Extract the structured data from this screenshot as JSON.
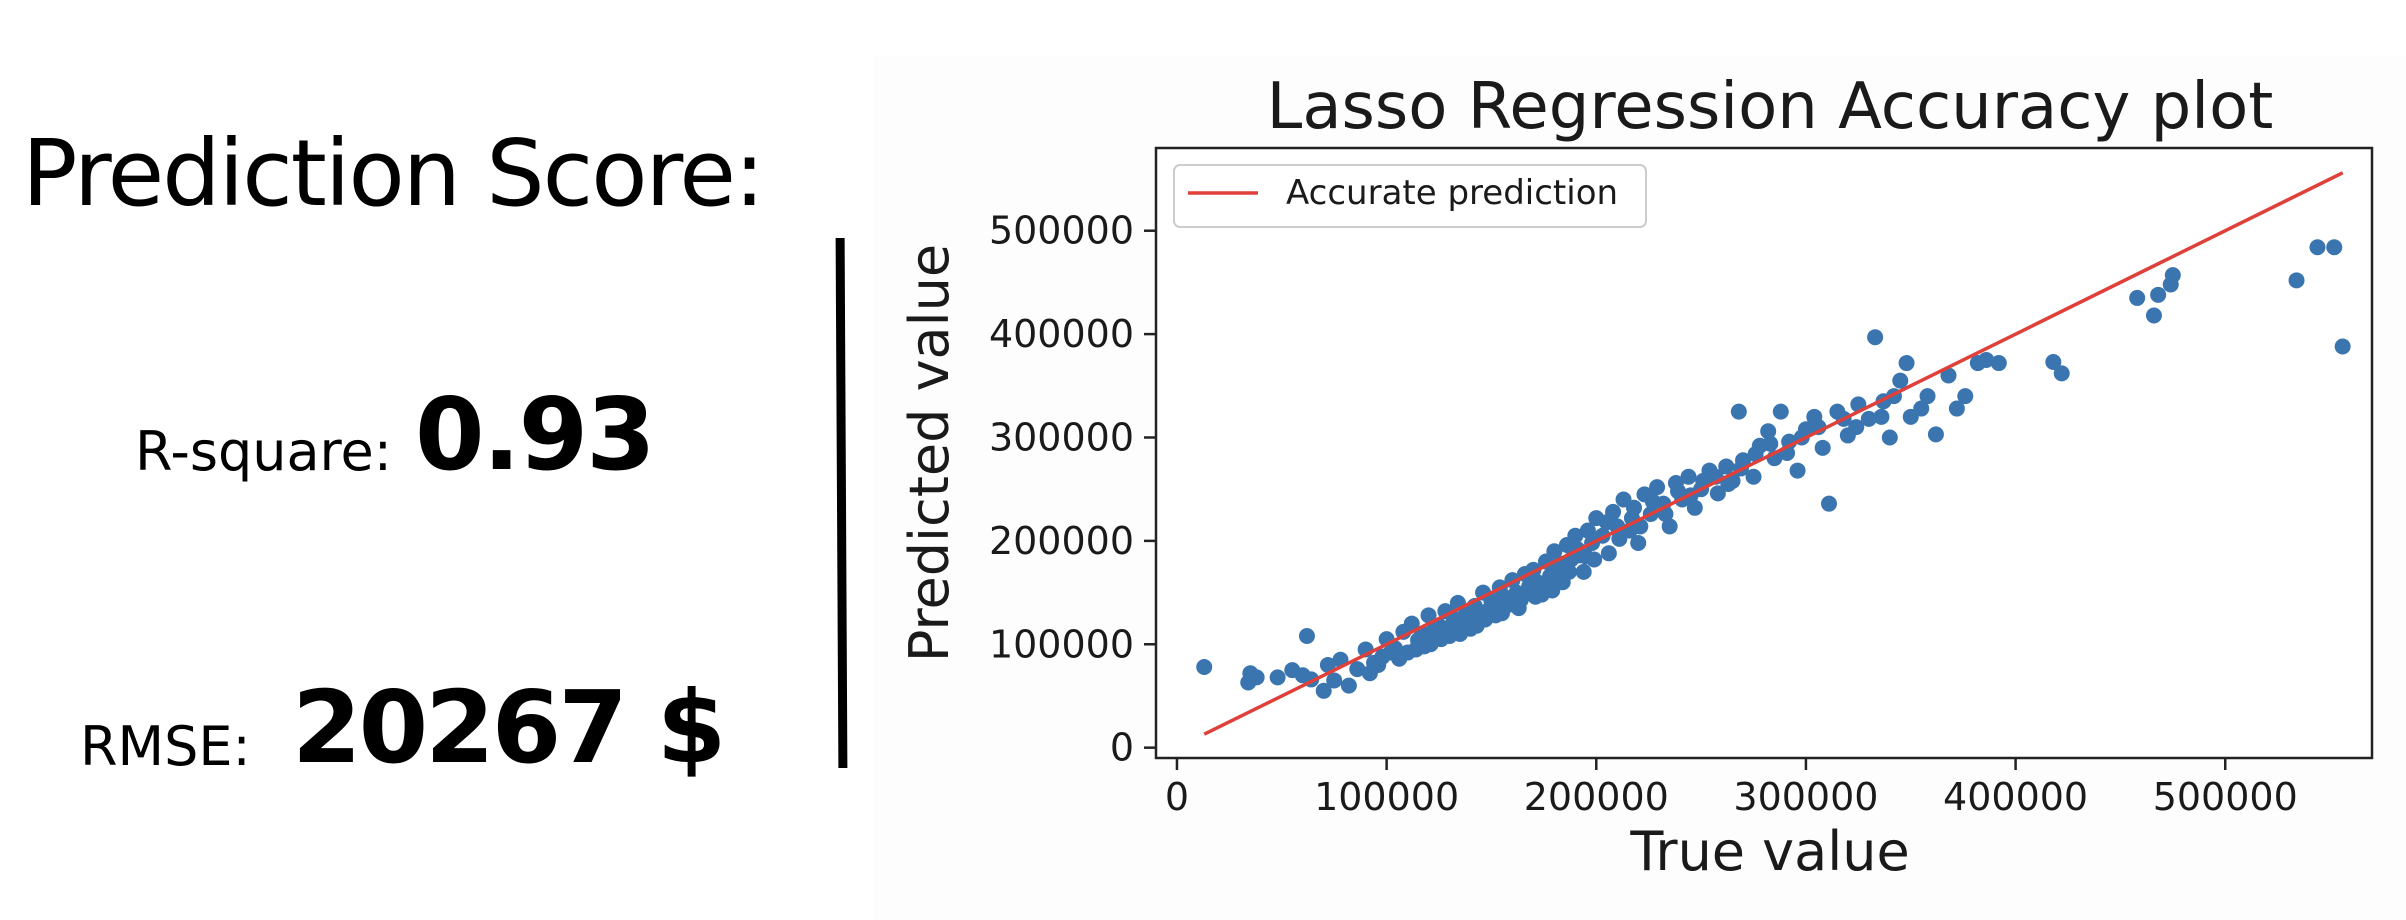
{
  "left_panel": {
    "title": "Prediction Score:",
    "r2_label": "R-square:",
    "r2_value": "0.93",
    "rmse_label": "RMSE:",
    "rmse_value": "20267 $"
  },
  "chart_data": {
    "type": "scatter",
    "title": "Lasso Regression Accuracy plot",
    "xlabel": "True value",
    "ylabel": "Predicted value",
    "xlim": [
      -10000,
      570000
    ],
    "ylim": [
      -10000,
      580000
    ],
    "xticks": [
      0,
      100000,
      200000,
      300000,
      400000,
      500000
    ],
    "yticks": [
      0,
      100000,
      200000,
      300000,
      400000,
      500000
    ],
    "grid": false,
    "legend": {
      "position": "top-left",
      "entries": [
        "Accurate prediction"
      ]
    },
    "colors": {
      "points": "#3a75b0",
      "line": "#e0403a"
    },
    "series": [
      {
        "name": "Accurate prediction",
        "kind": "line",
        "x": [
          13000,
          556000
        ],
        "y": [
          13000,
          556000
        ]
      },
      {
        "kind": "points",
        "points": [
          [
            13000,
            78000
          ],
          [
            34000,
            63000
          ],
          [
            35000,
            72000
          ],
          [
            38000,
            68000
          ],
          [
            48000,
            68000
          ],
          [
            55000,
            75000
          ],
          [
            60000,
            70000
          ],
          [
            62000,
            108000
          ],
          [
            64000,
            66000
          ],
          [
            70000,
            55000
          ],
          [
            72000,
            80000
          ],
          [
            75000,
            65000
          ],
          [
            78000,
            85000
          ],
          [
            82000,
            60000
          ],
          [
            86000,
            76000
          ],
          [
            90000,
            95000
          ],
          [
            94000,
            82000
          ],
          [
            98000,
            88000
          ],
          [
            100000,
            105000
          ],
          [
            104000,
            96000
          ],
          [
            108000,
            112000
          ],
          [
            110000,
            92000
          ],
          [
            112000,
            120000
          ],
          [
            115000,
            104000
          ],
          [
            118000,
            98000
          ],
          [
            120000,
            128000
          ],
          [
            122000,
            112000
          ],
          [
            125000,
            118000
          ],
          [
            128000,
            132000
          ],
          [
            130000,
            108000
          ],
          [
            132000,
            125000
          ],
          [
            134000,
            140000
          ],
          [
            136000,
            120000
          ],
          [
            138000,
            131000
          ],
          [
            140000,
            115000
          ],
          [
            142000,
            137000
          ],
          [
            144000,
            126000
          ],
          [
            146000,
            150000
          ],
          [
            148000,
            132000
          ],
          [
            150000,
            142000
          ],
          [
            152000,
            128000
          ],
          [
            154000,
            155000
          ],
          [
            156000,
            146000
          ],
          [
            158000,
            138000
          ],
          [
            160000,
            162000
          ],
          [
            162000,
            150000
          ],
          [
            164000,
            143000
          ],
          [
            166000,
            168000
          ],
          [
            168000,
            156000
          ],
          [
            170000,
            172000
          ],
          [
            172000,
            160000
          ],
          [
            174000,
            148000
          ],
          [
            176000,
            180000
          ],
          [
            178000,
            166000
          ],
          [
            180000,
            190000
          ],
          [
            182000,
            174000
          ],
          [
            184000,
            160000
          ],
          [
            186000,
            196000
          ],
          [
            188000,
            182000
          ],
          [
            190000,
            205000
          ],
          [
            192000,
            186000
          ],
          [
            194000,
            170000
          ],
          [
            196000,
            210000
          ],
          [
            198000,
            198000
          ],
          [
            200000,
            222000
          ],
          [
            203000,
            205000
          ],
          [
            206000,
            188000
          ],
          [
            208000,
            228000
          ],
          [
            210000,
            214000
          ],
          [
            213000,
            240000
          ],
          [
            216000,
            210000
          ],
          [
            218000,
            232000
          ],
          [
            220000,
            198000
          ],
          [
            223000,
            245000
          ],
          [
            226000,
            226000
          ],
          [
            229000,
            252000
          ],
          [
            232000,
            236000
          ],
          [
            235000,
            214000
          ],
          [
            238000,
            256000
          ],
          [
            241000,
            240000
          ],
          [
            244000,
            262000
          ],
          [
            247000,
            232000
          ],
          [
            250000,
            250000
          ],
          [
            254000,
            268000
          ],
          [
            258000,
            246000
          ],
          [
            262000,
            272000
          ],
          [
            265000,
            258000
          ],
          [
            268000,
            325000
          ],
          [
            270000,
            278000
          ],
          [
            275000,
            262000
          ],
          [
            278000,
            292000
          ],
          [
            282000,
            306000
          ],
          [
            285000,
            280000
          ],
          [
            288000,
            325000
          ],
          [
            292000,
            296000
          ],
          [
            296000,
            268000
          ],
          [
            300000,
            308000
          ],
          [
            304000,
            320000
          ],
          [
            308000,
            290000
          ],
          [
            311000,
            236000
          ],
          [
            315000,
            325000
          ],
          [
            320000,
            302000
          ],
          [
            325000,
            332000
          ],
          [
            330000,
            318000
          ],
          [
            333000,
            397000
          ],
          [
            337000,
            335000
          ],
          [
            340000,
            300000
          ],
          [
            345000,
            355000
          ],
          [
            348000,
            372000
          ],
          [
            350000,
            320000
          ],
          [
            355000,
            328000
          ],
          [
            362000,
            303000
          ],
          [
            368000,
            360000
          ],
          [
            372000,
            328000
          ],
          [
            376000,
            340000
          ],
          [
            382000,
            372000
          ],
          [
            386000,
            375000
          ],
          [
            392000,
            372000
          ],
          [
            418000,
            373000
          ],
          [
            422000,
            362000
          ],
          [
            458000,
            435000
          ],
          [
            466000,
            418000
          ],
          [
            468000,
            438000
          ],
          [
            474000,
            448000
          ],
          [
            475000,
            457000
          ],
          [
            534000,
            452000
          ],
          [
            544000,
            484000
          ],
          [
            552000,
            484000
          ],
          [
            556000,
            388000
          ],
          [
            92000,
            72000
          ],
          [
            96000,
            80000
          ],
          [
            102000,
            92000
          ],
          [
            106000,
            86000
          ],
          [
            114000,
            95000
          ],
          [
            117000,
            110000
          ],
          [
            121000,
            100000
          ],
          [
            126000,
            105000
          ],
          [
            131000,
            118000
          ],
          [
            135000,
            110000
          ],
          [
            139000,
            124000
          ],
          [
            143000,
            118000
          ],
          [
            147000,
            124000
          ],
          [
            151000,
            138000
          ],
          [
            155000,
            130000
          ],
          [
            159000,
            142000
          ],
          [
            163000,
            135000
          ],
          [
            167000,
            150000
          ],
          [
            171000,
            146000
          ],
          [
            175000,
            158000
          ],
          [
            179000,
            152000
          ],
          [
            183000,
            178000
          ],
          [
            187000,
            170000
          ],
          [
            191000,
            192000
          ],
          [
            195000,
            185000
          ],
          [
            199000,
            182000
          ],
          [
            205000,
            218000
          ],
          [
            211000,
            202000
          ],
          [
            217000,
            222000
          ],
          [
            221000,
            214000
          ],
          [
            227000,
            238000
          ],
          [
            233000,
            226000
          ],
          [
            239000,
            248000
          ],
          [
            245000,
            244000
          ],
          [
            251000,
            258000
          ],
          [
            257000,
            262000
          ],
          [
            263000,
            255000
          ],
          [
            269000,
            270000
          ],
          [
            276000,
            284000
          ],
          [
            283000,
            294000
          ],
          [
            291000,
            285000
          ],
          [
            298000,
            300000
          ],
          [
            306000,
            310000
          ],
          [
            318000,
            318000
          ],
          [
            324000,
            310000
          ],
          [
            336000,
            320000
          ],
          [
            342000,
            340000
          ],
          [
            358000,
            340000
          ]
        ]
      }
    ]
  }
}
